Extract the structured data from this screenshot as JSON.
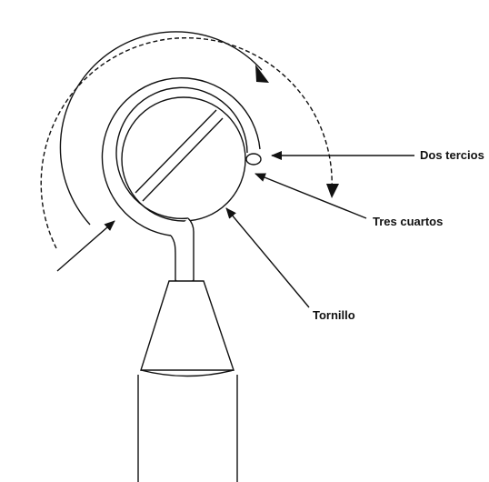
{
  "labels": {
    "dos_tercios": "Dos tercios",
    "tres_cuartos": "Tres cuartos",
    "tornillo": "Tornillo"
  },
  "colors": {
    "line": "#111111",
    "background": "#ffffff"
  }
}
